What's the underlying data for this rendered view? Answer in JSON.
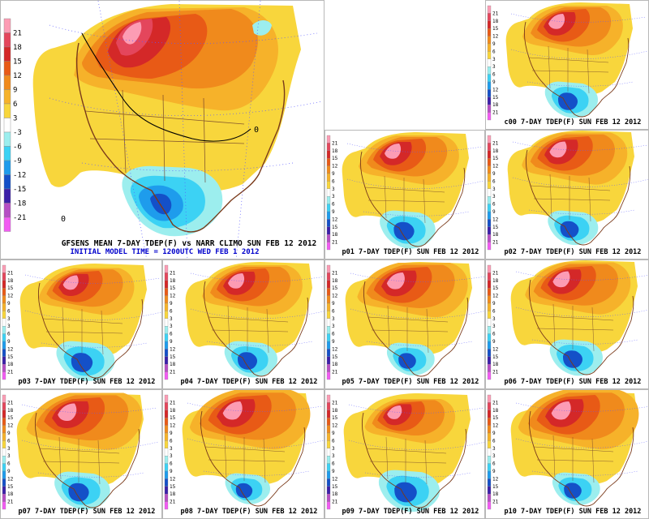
{
  "main_caption": "GFSENS MEAN 7-DAY TDEP(F) vs NARR CLIMO SUN FEB 12 2012",
  "initial_time": "INITIAL MODEL TIME = 1200UTC WED FEB 1 2012",
  "contour_label": "0",
  "legend": {
    "labels": [
      "21",
      "18",
      "15",
      "12",
      "9",
      "6",
      "3",
      "-3",
      "-6",
      "-9",
      "-12",
      "-15",
      "-18",
      "-21"
    ],
    "small_labels": [
      "21",
      "18",
      "15",
      "12",
      "9",
      "6",
      "3",
      "3",
      "6",
      "9",
      "12",
      "15",
      "18",
      "21"
    ],
    "colors": [
      "#fc9cb4",
      "#e4465c",
      "#d42828",
      "#e85a16",
      "#f08a1c",
      "#f6b22a",
      "#f8d63c",
      "#ffffff",
      "#9ceeee",
      "#3cd2f4",
      "#1e9cec",
      "#1450c8",
      "#3c20a8",
      "#b64ec4",
      "#f25cf2"
    ]
  },
  "members": [
    {
      "id": "c00",
      "caption": "c00 7-DAY TDEP(F) SUN FEB 12 2012"
    },
    {
      "id": "p01",
      "caption": "p01 7-DAY TDEP(F) SUN FEB 12 2012"
    },
    {
      "id": "p02",
      "caption": "p02 7-DAY TDEP(F) SUN FEB 12 2012"
    },
    {
      "id": "p03",
      "caption": "p03 7-DAY TDEP(F) SUN FEB 12 2012"
    },
    {
      "id": "p04",
      "caption": "p04 7-DAY TDEP(F) SUN FEB 12 2012"
    },
    {
      "id": "p05",
      "caption": "p05 7-DAY TDEP(F) SUN FEB 12 2012"
    },
    {
      "id": "p06",
      "caption": "p06 7-DAY TDEP(F) SUN FEB 12 2012"
    },
    {
      "id": "p07",
      "caption": "p07 7-DAY TDEP(F) SUN FEB 12 2012"
    },
    {
      "id": "p08",
      "caption": "p08 7-DAY TDEP(F) SUN FEB 12 2012"
    },
    {
      "id": "p09",
      "caption": "p09 7-DAY TDEP(F) SUN FEB 12 2012"
    },
    {
      "id": "p10",
      "caption": "p10 7-DAY TDEP(F) SUN FEB 12 2012"
    }
  ]
}
